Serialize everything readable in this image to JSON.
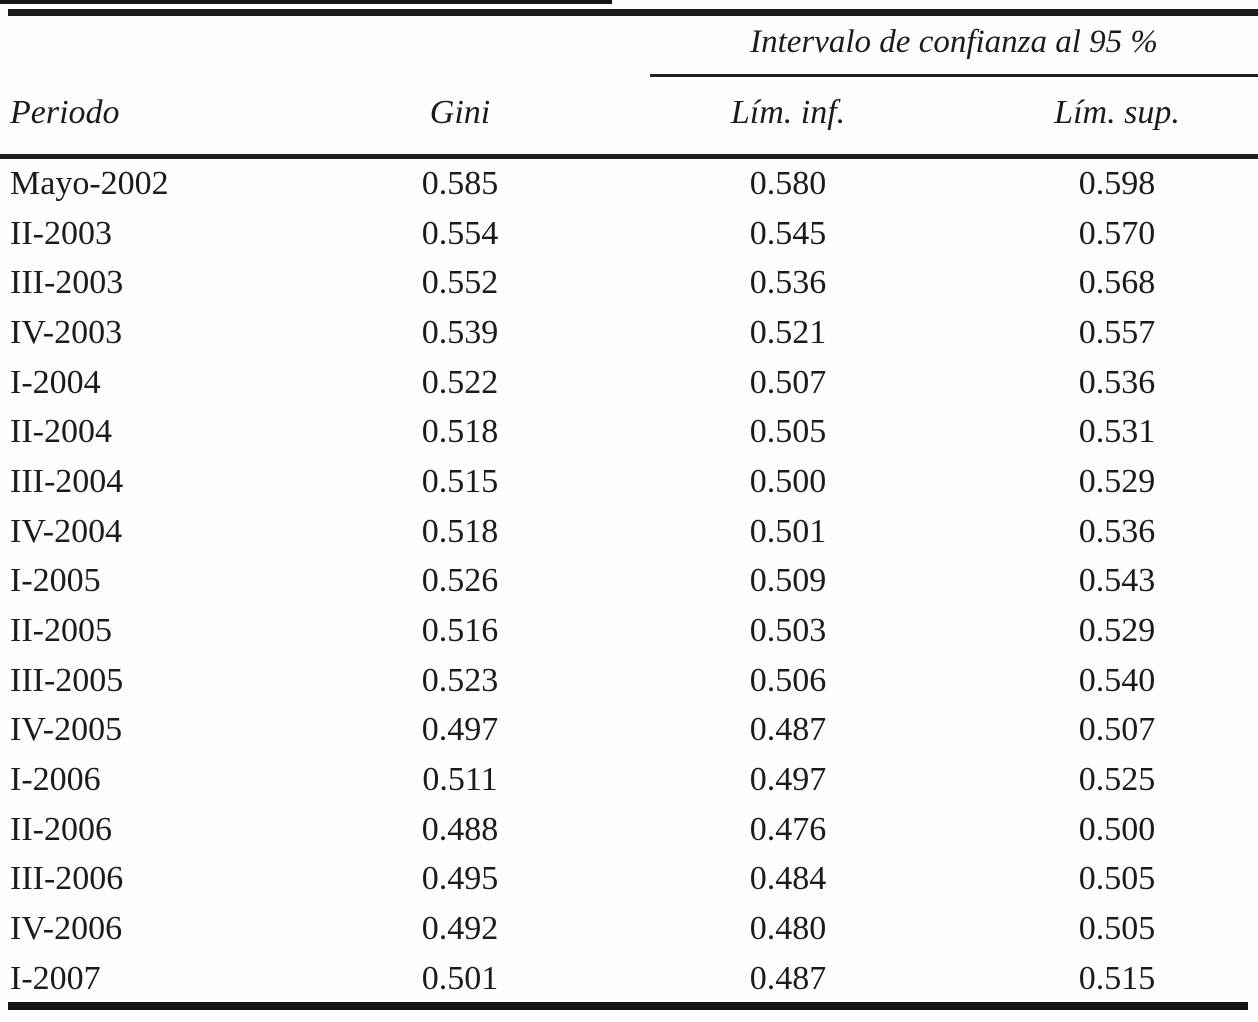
{
  "table": {
    "spanner_label": "Intervalo de confianza al 95 %",
    "columns": {
      "periodo": "Periodo",
      "gini": "Gini",
      "lim_inf": "Lím. inf.",
      "lim_sup": "Lím. sup."
    },
    "rows": [
      {
        "periodo": "Mayo-2002",
        "gini": "0.585",
        "lim_inf": "0.580",
        "lim_sup": "0.598"
      },
      {
        "periodo": "II-2003",
        "gini": "0.554",
        "lim_inf": "0.545",
        "lim_sup": "0.570"
      },
      {
        "periodo": "III-2003",
        "gini": "0.552",
        "lim_inf": "0.536",
        "lim_sup": "0.568"
      },
      {
        "periodo": "IV-2003",
        "gini": "0.539",
        "lim_inf": "0.521",
        "lim_sup": "0.557"
      },
      {
        "periodo": "I-2004",
        "gini": "0.522",
        "lim_inf": "0.507",
        "lim_sup": "0.536"
      },
      {
        "periodo": "II-2004",
        "gini": "0.518",
        "lim_inf": "0.505",
        "lim_sup": "0.531"
      },
      {
        "periodo": "III-2004",
        "gini": "0.515",
        "lim_inf": "0.500",
        "lim_sup": "0.529"
      },
      {
        "periodo": "IV-2004",
        "gini": "0.518",
        "lim_inf": "0.501",
        "lim_sup": "0.536"
      },
      {
        "periodo": "I-2005",
        "gini": "0.526",
        "lim_inf": "0.509",
        "lim_sup": "0.543"
      },
      {
        "periodo": "II-2005",
        "gini": "0.516",
        "lim_inf": "0.503",
        "lim_sup": "0.529"
      },
      {
        "periodo": "III-2005",
        "gini": "0.523",
        "lim_inf": "0.506",
        "lim_sup": "0.540"
      },
      {
        "periodo": "IV-2005",
        "gini": "0.497",
        "lim_inf": "0.487",
        "lim_sup": "0.507"
      },
      {
        "periodo": "I-2006",
        "gini": "0.511",
        "lim_inf": "0.497",
        "lim_sup": "0.525"
      },
      {
        "periodo": "II-2006",
        "gini": "0.488",
        "lim_inf": "0.476",
        "lim_sup": "0.500"
      },
      {
        "periodo": "III-2006",
        "gini": "0.495",
        "lim_inf": "0.484",
        "lim_sup": "0.505"
      },
      {
        "periodo": "IV-2006",
        "gini": "0.492",
        "lim_inf": "0.480",
        "lim_sup": "0.505"
      },
      {
        "periodo": "I-2007",
        "gini": "0.501",
        "lim_inf": "0.487",
        "lim_sup": "0.515"
      }
    ]
  },
  "colors": {
    "text": "#1b1b1b",
    "rule": "#1a1a1a",
    "background": "#fefefe"
  },
  "chart_data": {
    "type": "table",
    "title": "Intervalo de confianza al 95 %",
    "categories": [
      "Mayo-2002",
      "II-2003",
      "III-2003",
      "IV-2003",
      "I-2004",
      "II-2004",
      "III-2004",
      "IV-2004",
      "I-2005",
      "II-2005",
      "III-2005",
      "IV-2005",
      "I-2006",
      "II-2006",
      "III-2006",
      "IV-2006",
      "I-2007"
    ],
    "series": [
      {
        "name": "Gini",
        "values": [
          0.585,
          0.554,
          0.552,
          0.539,
          0.522,
          0.518,
          0.515,
          0.518,
          0.526,
          0.516,
          0.523,
          0.497,
          0.511,
          0.488,
          0.495,
          0.492,
          0.501
        ]
      },
      {
        "name": "Lím. inf.",
        "values": [
          0.58,
          0.545,
          0.536,
          0.521,
          0.507,
          0.505,
          0.5,
          0.501,
          0.509,
          0.503,
          0.506,
          0.487,
          0.497,
          0.476,
          0.484,
          0.48,
          0.487
        ]
      },
      {
        "name": "Lím. sup.",
        "values": [
          0.598,
          0.57,
          0.568,
          0.557,
          0.536,
          0.531,
          0.529,
          0.536,
          0.543,
          0.529,
          0.54,
          0.507,
          0.525,
          0.5,
          0.505,
          0.505,
          0.515
        ]
      }
    ]
  }
}
